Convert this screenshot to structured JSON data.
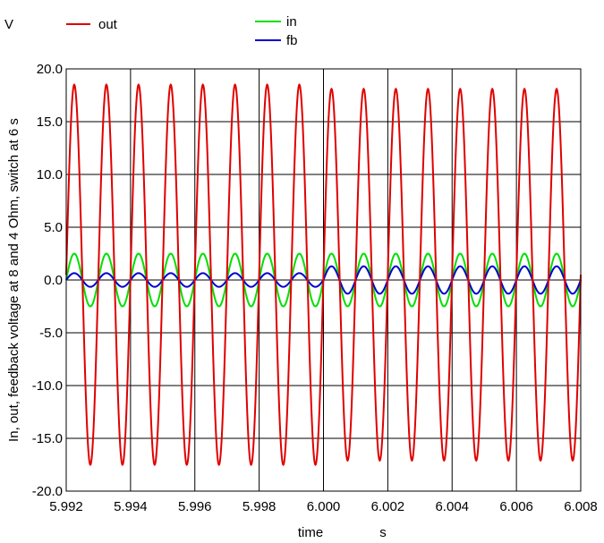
{
  "chart_data": {
    "type": "line",
    "xlabel": "time",
    "xunit": "s",
    "ylabel": "In, out, feedback voltage at 8 and 4 Ohm, switch at 6 s",
    "yunit": "V",
    "xlim": [
      5.992,
      6.008
    ],
    "ylim": [
      -20.0,
      20.0
    ],
    "xticks": [
      "5.992",
      "5.994",
      "5.996",
      "5.998",
      "6.000",
      "6.002",
      "6.004",
      "6.006",
      "6.008"
    ],
    "yticks": [
      "20.0",
      "15.0",
      "10.0",
      "5.0",
      "0.0",
      "-5.0",
      "-10.0",
      "-15.0",
      "-20.0"
    ],
    "grid": true,
    "legend_position": "top",
    "signal": {
      "frequency_hz": 1000,
      "switch_time_s": 6.0
    },
    "series": [
      {
        "name": "out",
        "color": "#e00000",
        "amplitude_before": 18.0,
        "amplitude_after": 17.6,
        "offset": 0.5,
        "phase_deg": 0
      },
      {
        "name": "in",
        "color": "#00e000",
        "amplitude_before": 2.5,
        "amplitude_after": 2.5,
        "offset": 0.0,
        "phase_deg": 0
      },
      {
        "name": "fb",
        "color": "#0000d0",
        "amplitude_before": 0.65,
        "amplitude_after": 1.3,
        "offset": 0.0,
        "phase_deg": 0
      }
    ]
  }
}
